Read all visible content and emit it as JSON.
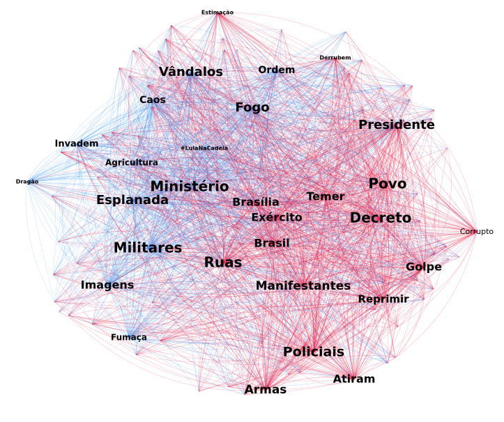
{
  "nodes": [
    {
      "label": "Estimação"
    },
    {
      "label": "Derrubem"
    },
    {
      "label": "Vândalos"
    },
    {
      "label": "Ordem"
    },
    {
      "label": "Caos"
    },
    {
      "label": "Fogo"
    },
    {
      "label": "Presidente"
    },
    {
      "label": "Invadem"
    },
    {
      "label": "#LulaNaCadeia"
    },
    {
      "label": "Agricultura"
    },
    {
      "label": "Dragão"
    },
    {
      "label": "Ministério"
    },
    {
      "label": "Povo"
    },
    {
      "label": "Temer"
    },
    {
      "label": "Esplanada"
    },
    {
      "label": "Brasília"
    },
    {
      "label": "Exército"
    },
    {
      "label": "Decreto"
    },
    {
      "label": "Corrupto"
    },
    {
      "label": "Brasil"
    },
    {
      "label": "Militares"
    },
    {
      "label": "Ruas"
    },
    {
      "label": "Golpe"
    },
    {
      "label": "Imagens"
    },
    {
      "label": "Manifestantes"
    },
    {
      "label": "Reprimir"
    },
    {
      "label": "Fumaça"
    },
    {
      "label": "Policiais"
    },
    {
      "label": "Atiram"
    },
    {
      "label": "Armas"
    }
  ]
}
